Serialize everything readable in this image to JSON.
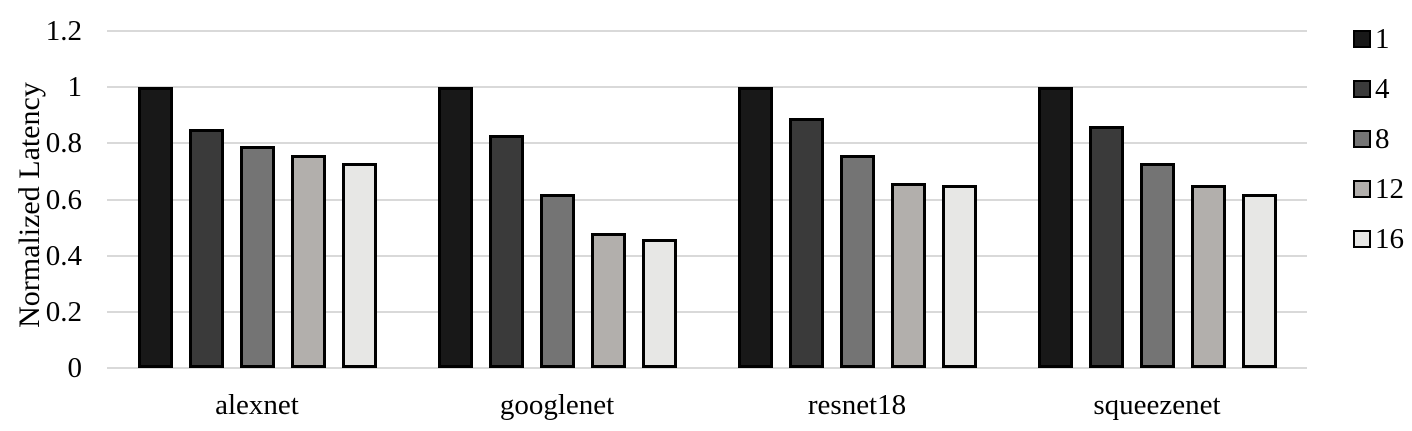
{
  "chart_data": {
    "type": "bar",
    "title": "",
    "xlabel": "",
    "ylabel": "Normalized Latency",
    "categories": [
      "alexnet",
      "googlenet",
      "resnet18",
      "squeezenet"
    ],
    "series": [
      {
        "name": "1",
        "color": "#181818",
        "values": [
          1.0,
          1.0,
          1.0,
          1.0
        ]
      },
      {
        "name": "4",
        "color": "#3a3a3a",
        "values": [
          0.85,
          0.83,
          0.89,
          0.86
        ]
      },
      {
        "name": "8",
        "color": "#747474",
        "values": [
          0.79,
          0.62,
          0.76,
          0.73
        ]
      },
      {
        "name": "12",
        "color": "#b2afac",
        "values": [
          0.76,
          0.48,
          0.66,
          0.65
        ]
      },
      {
        "name": "16",
        "color": "#e7e7e5",
        "values": [
          0.73,
          0.46,
          0.65,
          0.62
        ]
      }
    ],
    "ylim": [
      0,
      1.2
    ],
    "yticks": [
      0,
      0.2,
      0.4,
      0.6,
      0.8,
      1,
      1.2
    ],
    "ytick_labels": [
      "0",
      "0.2",
      "0.4",
      "0.6",
      "0.8",
      "1",
      "1.2"
    ],
    "grid": true,
    "legend_position": "right",
    "bar_border_color": "#000000",
    "gridline_color": "#d9d9d9",
    "text_color": "#000000"
  }
}
